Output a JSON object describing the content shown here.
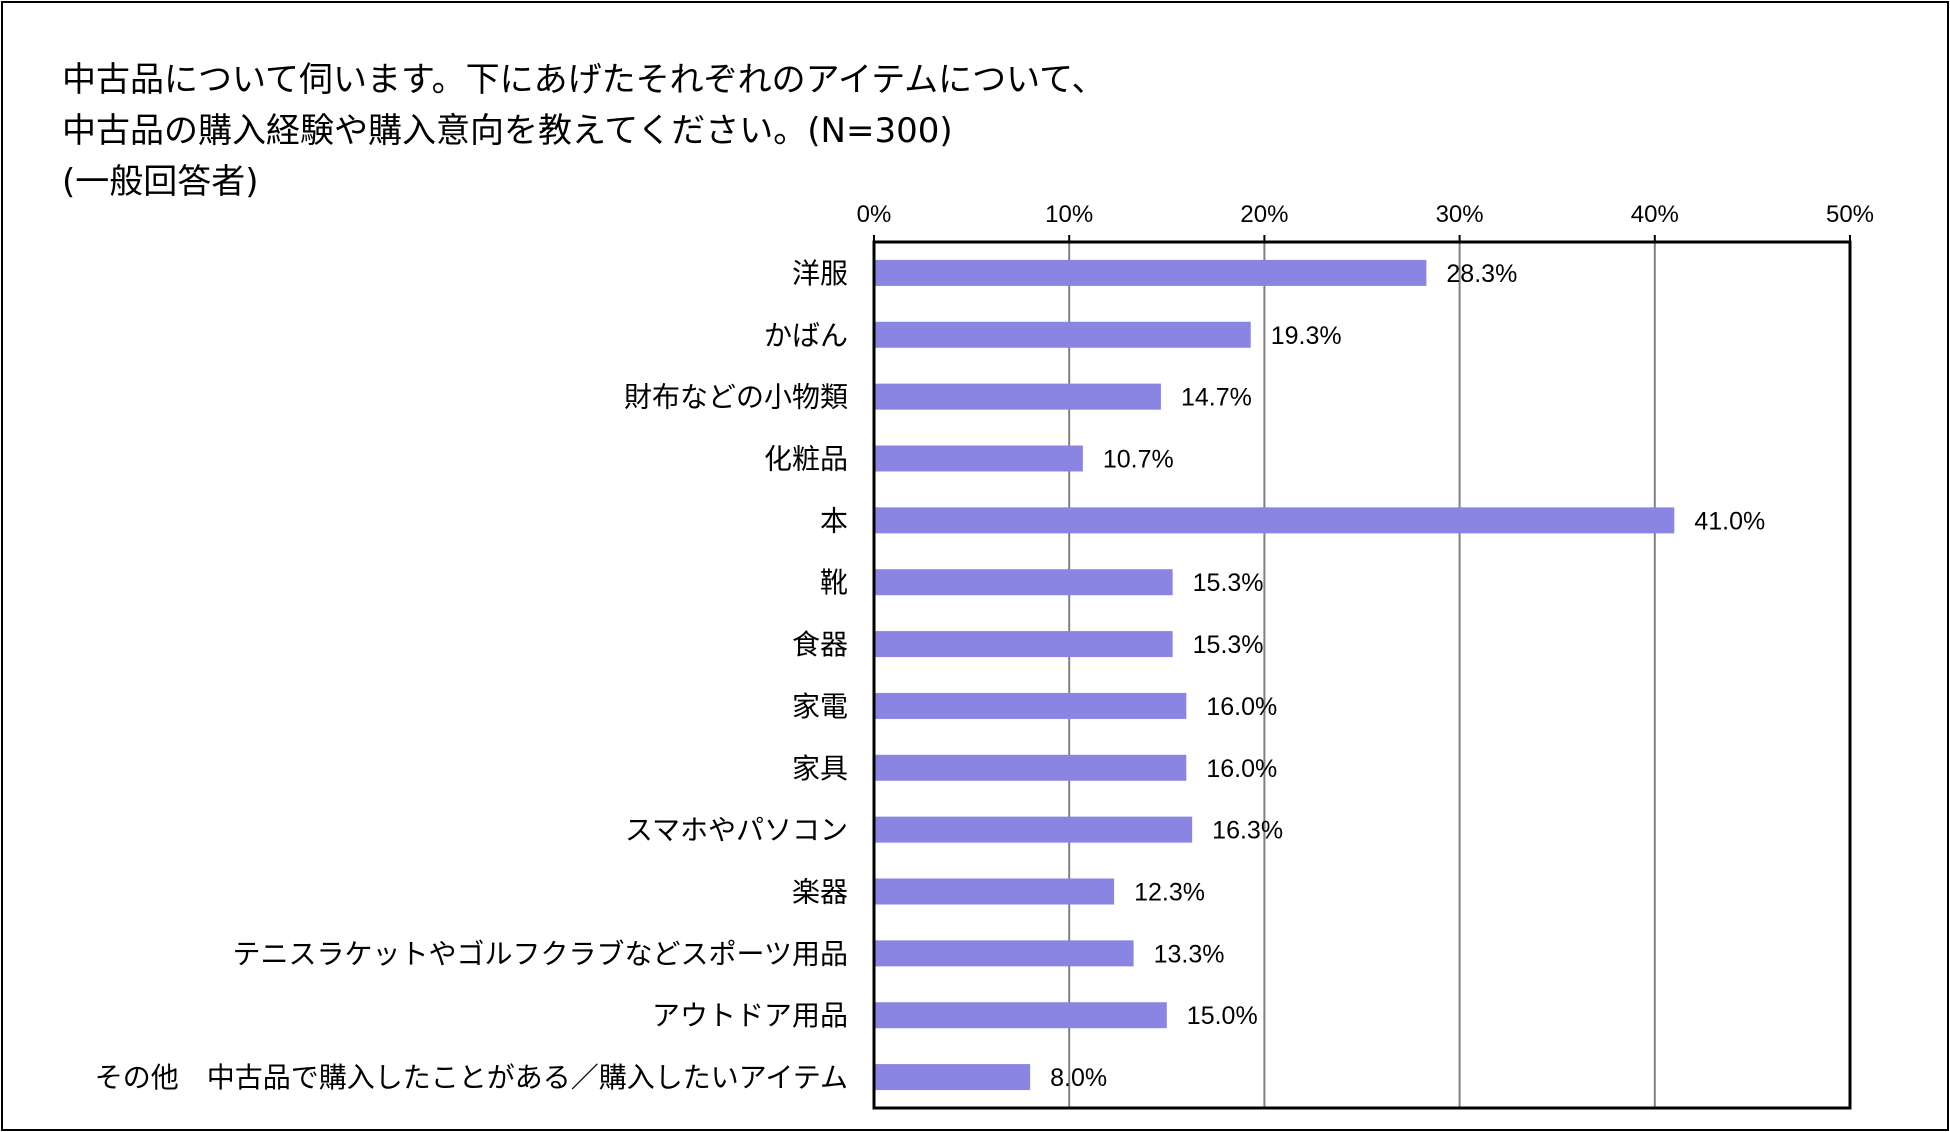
{
  "title_lines": [
    "中古品について伺います。下にあげたそれぞれのアイテムについて、",
    "中古品の購入経験や購入意向を教えてください。(N=300)",
    "(一般回答者)"
  ],
  "colors": {
    "bar": "#8a85e3",
    "grid": "#808080",
    "axis": "#000000"
  },
  "chart_data": {
    "type": "bar",
    "orientation": "horizontal",
    "title": "中古品について伺います。下にあげたそれぞれのアイテムについて、中古品の購入経験や購入意向を教えてください。(N=300)(一般回答者)",
    "xlim": [
      0,
      50
    ],
    "xticks": [
      0,
      10,
      20,
      30,
      40,
      50
    ],
    "tick_suffix": "%",
    "grid": true,
    "categories": [
      "洋服",
      "かばん",
      "財布などの小物類",
      "化粧品",
      "本",
      "靴",
      "食器",
      "家電",
      "家具",
      "スマホやパソコン",
      "楽器",
      "テニスラケットやゴルフクラブなどスポーツ用品",
      "アウトドア用品",
      "その他　中古品で購入したことがある／購入したいアイテム"
    ],
    "values": [
      28.3,
      19.3,
      14.7,
      10.7,
      41.0,
      15.3,
      15.3,
      16.0,
      16.0,
      16.3,
      12.3,
      13.3,
      15.0,
      8.0
    ],
    "value_labels": [
      "28.3%",
      "19.3%",
      "14.7%",
      "10.7%",
      "41.0%",
      "15.3%",
      "15.3%",
      "16.0%",
      "16.0%",
      "16.3%",
      "12.3%",
      "13.3%",
      "15.0%",
      "8.0%"
    ]
  }
}
